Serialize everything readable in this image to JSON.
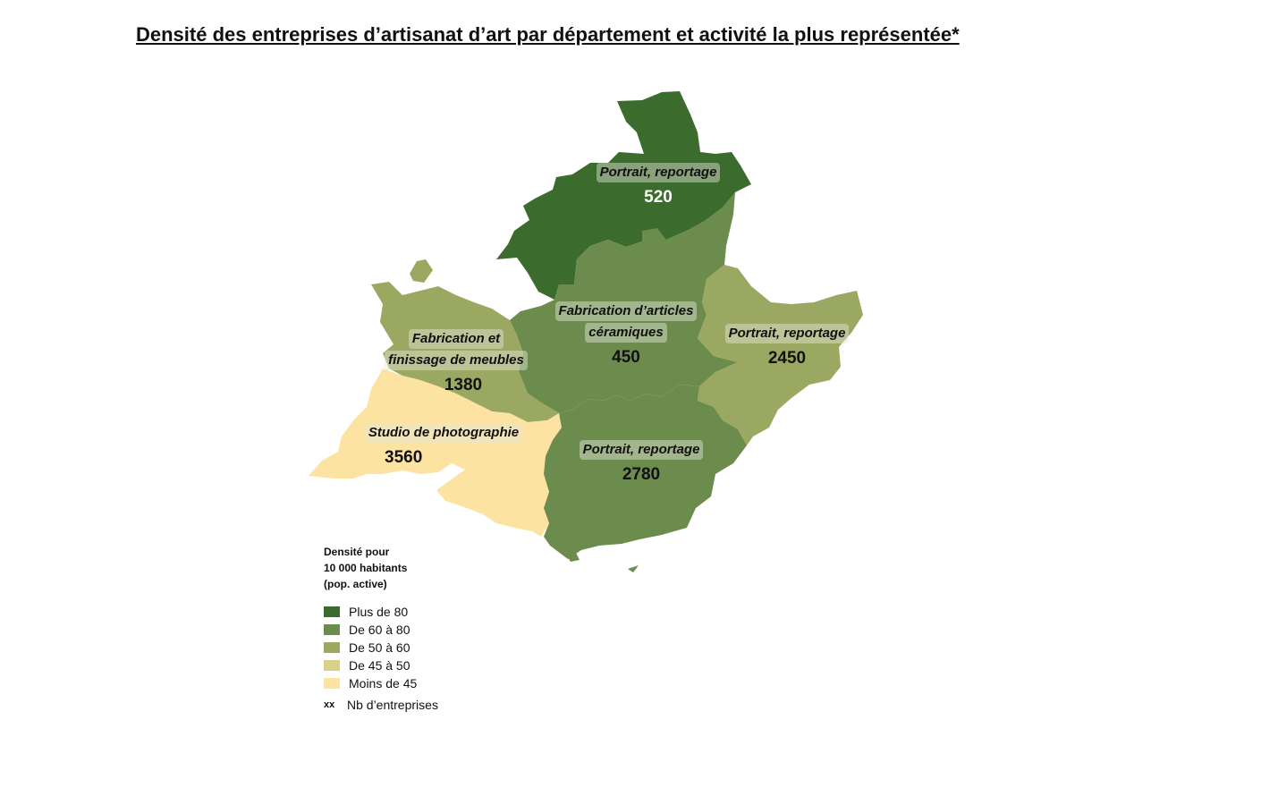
{
  "title": "Densité des entreprises d’artisanat d’art par département et activité la plus représentée*",
  "colors": {
    "plus_80": "#3b6b2d",
    "de_60_80": "#6b8c4c",
    "de_50_60": "#9aa862",
    "de_45_50": "#d9d08a",
    "moins_45": "#fde3a1"
  },
  "regions": {
    "north": {
      "activity": "Portrait, reportage",
      "count": "520",
      "density_class": "Plus de 80"
    },
    "center": {
      "activity_line1": "Fabrication d’articles",
      "activity_line2": "céramiques",
      "count": "450",
      "density_class": "De 60 à 80"
    },
    "east": {
      "activity": "Portrait, reportage",
      "count": "2450",
      "density_class": "De 50 à 60"
    },
    "west": {
      "activity_line1": "Fabrication et",
      "activity_line2": "finissage de meubles",
      "count": "1380",
      "density_class": "De 50 à 60"
    },
    "southwest": {
      "activity": "Studio de photographie",
      "count": "3560",
      "density_class": "Moins de 45"
    },
    "south": {
      "activity": "Portrait, reportage",
      "count": "2780",
      "density_class": "De 60 à 80"
    }
  },
  "legend": {
    "title_line1": "Densité pour",
    "title_line2": "10 000 habitants",
    "title_line3": "(pop. active)",
    "items": [
      "Plus de 80",
      "De 60 à 80",
      "De 50 à 60",
      "De 45 à 50",
      "Moins de 45"
    ],
    "marker": "xx",
    "marker_label": "Nb d’entreprises"
  }
}
